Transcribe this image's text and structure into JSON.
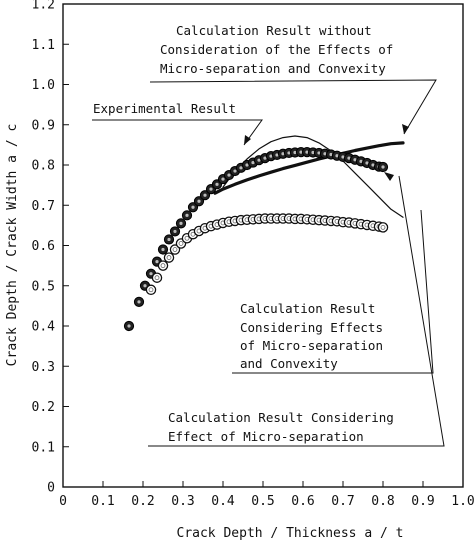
{
  "chart_data": {
    "type": "scatter",
    "xlabel": "Crack Depth / Thickness  a / t",
    "ylabel": "Crack Depth / Crack Width  a / c",
    "xlim": [
      0,
      1.0
    ],
    "ylim": [
      0,
      1.2
    ],
    "x_ticks": [
      "0",
      "0.1",
      "0.2",
      "0.3",
      "0.4",
      "0.5",
      "0.6",
      "0.7",
      "0.8",
      "0.9",
      "1.0"
    ],
    "y_ticks": [
      "0",
      "0.1",
      "0.2",
      "0.3",
      "0.4",
      "0.5",
      "0.6",
      "0.7",
      "0.8",
      "0.9",
      "1.0",
      "1.1",
      "1.2"
    ],
    "grid": false,
    "series": [
      {
        "kind": "points",
        "marker": "filled-circle",
        "x": [
          0.165,
          0.19,
          0.205,
          0.22,
          0.235,
          0.25,
          0.265,
          0.28,
          0.295,
          0.31,
          0.325,
          0.34,
          0.355,
          0.37,
          0.385,
          0.4,
          0.415,
          0.43,
          0.445,
          0.46,
          0.475,
          0.49,
          0.505,
          0.52,
          0.535,
          0.55,
          0.565,
          0.58,
          0.595,
          0.61,
          0.625,
          0.64,
          0.655,
          0.67,
          0.685,
          0.7,
          0.715,
          0.73,
          0.745,
          0.76,
          0.775,
          0.79,
          0.8
        ],
        "y": [
          0.4,
          0.46,
          0.5,
          0.53,
          0.56,
          0.59,
          0.615,
          0.635,
          0.655,
          0.675,
          0.695,
          0.71,
          0.725,
          0.74,
          0.752,
          0.765,
          0.775,
          0.785,
          0.793,
          0.8,
          0.806,
          0.812,
          0.817,
          0.822,
          0.825,
          0.828,
          0.83,
          0.831,
          0.832,
          0.832,
          0.831,
          0.83,
          0.828,
          0.826,
          0.823,
          0.82,
          0.817,
          0.813,
          0.809,
          0.805,
          0.8,
          0.796,
          0.795
        ]
      },
      {
        "kind": "points",
        "marker": "open-circle",
        "x": [
          0.22,
          0.235,
          0.25,
          0.265,
          0.28,
          0.295,
          0.31,
          0.325,
          0.34,
          0.355,
          0.37,
          0.385,
          0.4,
          0.415,
          0.43,
          0.445,
          0.46,
          0.475,
          0.49,
          0.505,
          0.52,
          0.535,
          0.55,
          0.565,
          0.58,
          0.595,
          0.61,
          0.625,
          0.64,
          0.655,
          0.67,
          0.685,
          0.7,
          0.715,
          0.73,
          0.745,
          0.76,
          0.775,
          0.79,
          0.8
        ],
        "y": [
          0.49,
          0.52,
          0.55,
          0.57,
          0.59,
          0.605,
          0.618,
          0.628,
          0.636,
          0.643,
          0.648,
          0.652,
          0.656,
          0.659,
          0.661,
          0.663,
          0.664,
          0.665,
          0.666,
          0.667,
          0.667,
          0.667,
          0.667,
          0.667,
          0.666,
          0.666,
          0.665,
          0.664,
          0.663,
          0.662,
          0.661,
          0.66,
          0.658,
          0.657,
          0.655,
          0.653,
          0.651,
          0.649,
          0.647,
          0.645
        ]
      },
      {
        "kind": "curve",
        "style": "thin",
        "x": [
          0.4,
          0.43,
          0.46,
          0.49,
          0.52,
          0.55,
          0.58,
          0.61,
          0.64,
          0.67,
          0.7,
          0.73,
          0.76,
          0.79,
          0.82,
          0.85
        ],
        "y": [
          0.745,
          0.785,
          0.815,
          0.84,
          0.858,
          0.868,
          0.872,
          0.868,
          0.855,
          0.835,
          0.81,
          0.78,
          0.75,
          0.72,
          0.69,
          0.67
        ]
      },
      {
        "kind": "curve",
        "style": "thick",
        "x": [
          0.38,
          0.4,
          0.43,
          0.46,
          0.49,
          0.52,
          0.55,
          0.58,
          0.61,
          0.64,
          0.67,
          0.7,
          0.73,
          0.76,
          0.79,
          0.82,
          0.85
        ],
        "y": [
          0.73,
          0.74,
          0.752,
          0.763,
          0.773,
          0.782,
          0.791,
          0.799,
          0.807,
          0.815,
          0.822,
          0.829,
          0.836,
          0.842,
          0.848,
          0.853,
          0.855
        ]
      }
    ],
    "annotations": [
      "Calculation Result without",
      "Consideration of the Effects of",
      "Micro-separation and Convexity",
      "Experimental Result",
      "Calculation Result",
      "Considering Effects",
      "of Micro-separation",
      "and Convexity",
      "Calculation Result Considering",
      "Effect of Micro-separation"
    ]
  }
}
